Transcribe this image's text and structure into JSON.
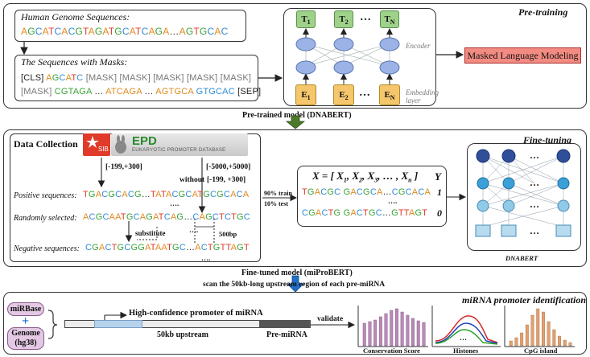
{
  "pretraining": {
    "label": "Pre-training",
    "genome_title": "Human Genome Sequences:",
    "genome_seq": "AGCATCACGTAGATGCATCAGA…AGTGCAC",
    "masks_title": "The Sequences with Masks:",
    "mask_line1_a": "[CLS]",
    "mask_line1_b": "AGCATC",
    "mask_line1_c": "[MASK] [MASK] [MASK] [MASK] [MASK]",
    "mask_line2_a": "[MASK]",
    "mask_line2_b": "CGTAGA",
    "mask_line2_c": "…",
    "mask_line2_d": "ATCAGA",
    "mask_line2_e": "…",
    "mask_line2_f": "AGTGCA",
    "mask_line2_g": "GTGCAC",
    "mask_line2_h": "[SEP]",
    "encoder_label": "Encoder",
    "embedding_label": "Embedding layer",
    "t1": "T",
    "t1_sub": "1",
    "t2": "T",
    "t2_sub": "2",
    "tn": "T",
    "tn_sub": "N",
    "e1": "E",
    "e1_sub": "1",
    "e2": "E",
    "e2_sub": "2",
    "en": "E",
    "en_sub": "N",
    "dots": "…",
    "mlm": "Masked Language Modeling"
  },
  "arrow1_label": "Pre-trained model (DNABERT)",
  "finetuning": {
    "label": "Fine-tuning",
    "data_collection": "Data Collection",
    "sib": "SIB",
    "epd": "EPD",
    "epd_sub": "EUKARYOTIC PROMOTER DATABASE",
    "range1": "[-199,+300]",
    "range2": "[-5000,+5000]",
    "without": "without",
    "range3": "[-199, +300]",
    "positive_label": "Positive sequences:",
    "positive_seq": "TGACGCACG…TATACGCATGCGCACA",
    "random_label": "Randomly selected:",
    "random_seq": "ACGCAATGCAGATCAG…CAGCTCTGC",
    "substitute": "substitute",
    "bp500": "500bp",
    "negative_label": "Negative sequences:",
    "negative_seq": "CGACTGCGGATAATGC…ACTGTTAGT",
    "dots4": "….",
    "train": "90% train",
    "test": "10% test",
    "x_eq": "X = [ X",
    "x_rest": ", X",
    "x_tail": " ]",
    "x_mid": ", … , X",
    "y_label": "Y",
    "row1_seq": "TGACGC GACGCA…CGCACA",
    "row1_y": "1",
    "row2_seq": "CGACTG GACTGC…GTTAGT",
    "row2_y": "0",
    "model_label": "DNABERT"
  },
  "arrow2_label": "Fine-tuned model (miProBERT)",
  "scan_label": "scan the 50kb-long upstream region of each pre-miRNA",
  "bottom": {
    "title": "miRNA promoter identification",
    "mirbase": "miRBase",
    "plus": "+",
    "genome": "Genome",
    "genome_sub": "(hg38)",
    "promoter_label": "High-confidence promoter of miRNA",
    "upstream": "50kb upstream",
    "premirna": "Pre-miRNA",
    "validate": "validate",
    "cons": "Conservation Score",
    "histones": "Histones",
    "cpg": "CpG island",
    "hist_dots": "…"
  },
  "colors": {
    "A": "#e08a1e",
    "C": "#2f8bd6",
    "G": "#3aa336",
    "T": "#e0392a",
    "green_node": "#9ed28a",
    "orange_node": "#f5c66b",
    "mlm": "#f28b82",
    "purple_bar": "#b88ab8",
    "orange_bar": "#e0a070",
    "blue_arrow": "#1f6fc6",
    "green_arrow": "#4b7a2a"
  }
}
